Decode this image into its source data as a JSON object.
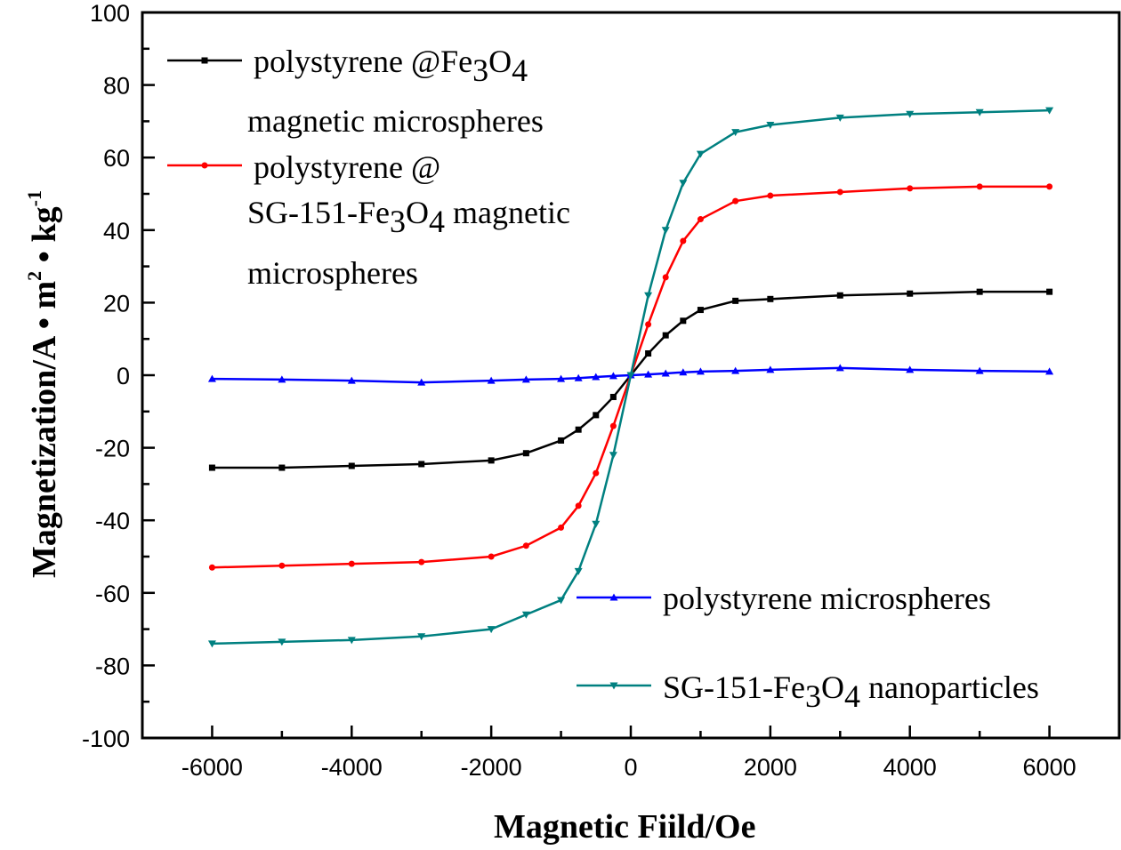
{
  "chart_data": {
    "type": "line",
    "title": "",
    "xlabel": "Magnetic Fiild/Oe",
    "ylabel": {
      "main": "Magnetization/A • m",
      "sup1": "2",
      "mid": " • kg",
      "sup2": "-1"
    },
    "xlim": [
      -7000,
      7000
    ],
    "ylim": [
      -100,
      100
    ],
    "xticks": [
      -6000,
      -4000,
      -2000,
      0,
      2000,
      4000,
      6000
    ],
    "yticks": [
      100,
      80,
      60,
      40,
      20,
      0,
      -20,
      -40,
      -60,
      -80,
      -100
    ],
    "grid": false,
    "x": [
      -6000,
      -5000,
      -4000,
      -3000,
      -2000,
      -1500,
      -1000,
      -750,
      -500,
      -250,
      0,
      250,
      500,
      750,
      1000,
      1500,
      2000,
      3000,
      4000,
      5000,
      6000
    ],
    "series": [
      {
        "name": "polystyrene @Fe3O4 magnetic microspheres",
        "color": "#000000",
        "marker": "square",
        "values": [
          -25.5,
          -25.5,
          -25,
          -24.5,
          -23.5,
          -21.5,
          -18,
          -15,
          -11,
          -6,
          0,
          6,
          11,
          15,
          18,
          20.5,
          21,
          22,
          22.5,
          23,
          23
        ]
      },
      {
        "name": "polystyrene @ SG-151-Fe3O4 magnetic microspheres",
        "color": "#ff0000",
        "marker": "circle",
        "values": [
          -53,
          -52.5,
          -52,
          -51.5,
          -50,
          -47,
          -42,
          -36,
          -27,
          -14,
          0,
          14,
          27,
          37,
          43,
          48,
          49.5,
          50.5,
          51.5,
          52,
          52
        ]
      },
      {
        "name": "polystyrene microspheres",
        "color": "#0000ff",
        "marker": "triangle-up",
        "values": [
          -1,
          -1.2,
          -1.5,
          -2,
          -1.5,
          -1.2,
          -1,
          -0.8,
          -0.5,
          -0.2,
          0,
          0.2,
          0.5,
          0.8,
          1,
          1.2,
          1.5,
          2,
          1.5,
          1.2,
          1
        ]
      },
      {
        "name": "SG-151-Fe3O4 nanoparticles",
        "color": "#008080",
        "marker": "triangle-down",
        "values": [
          -74,
          -73.5,
          -73,
          -72,
          -70,
          -66,
          -62,
          -54,
          -41,
          -22,
          0,
          22,
          40,
          53,
          61,
          67,
          69,
          71,
          72,
          72.5,
          73
        ]
      }
    ],
    "legend": [
      {
        "parts": [
          "polystyrene @Fe",
          "3",
          "O",
          "4"
        ],
        "line2": "magnetic microspheres"
      },
      {
        "parts": [
          "polystyrene @"
        ],
        "line2parts": [
          "SG-151-Fe",
          "3",
          "O",
          "4",
          " magnetic"
        ],
        "line3": "microspheres"
      },
      {
        "parts": [
          "polystyrene microspheres"
        ]
      },
      {
        "parts": [
          "SG-151-Fe",
          "3",
          "O",
          "4",
          " nanoparticles"
        ]
      }
    ]
  }
}
